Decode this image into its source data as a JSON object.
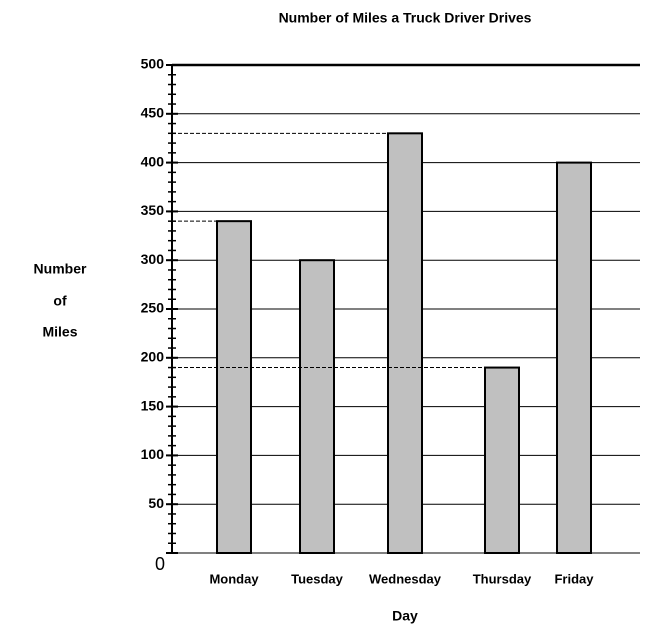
{
  "chart_data": {
    "type": "bar",
    "title": "Number of Miles a Truck Driver Drives",
    "x_label": "Day",
    "y_label": [
      "Number",
      "of",
      "Miles"
    ],
    "categories": [
      "Monday",
      "Tuesday",
      "Wednesday",
      "Thursday",
      "Friday"
    ],
    "values": [
      340,
      300,
      430,
      190,
      400
    ],
    "color": "#c0c0c0",
    "ylim": [
      0,
      500
    ],
    "yticks": [
      0,
      50,
      100,
      150,
      200,
      250,
      300,
      350,
      400,
      450,
      500
    ],
    "grid": true,
    "minor_tick_step": 10,
    "dashed_guides": [
      0,
      2,
      3
    ]
  }
}
